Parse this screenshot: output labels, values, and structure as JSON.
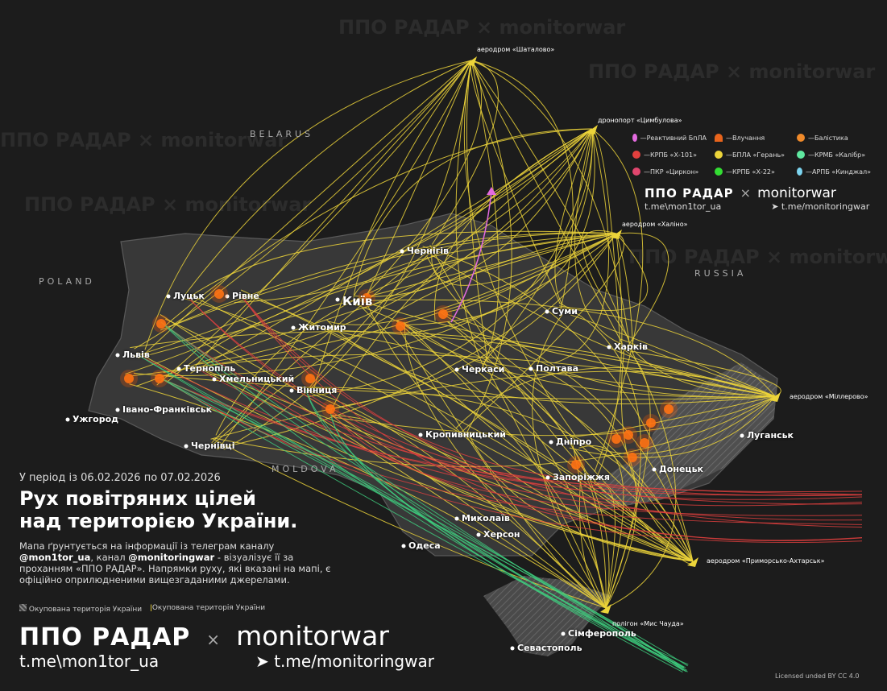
{
  "countries": [
    "BELARUS",
    "POLAND",
    "RUSSIA",
    "MOLDOVA"
  ],
  "cities": [
    "Луцьк",
    "Рівне",
    "Львів",
    "Тернопіль",
    "Хмельницький",
    "Вінниця",
    "Житомир",
    "Київ",
    "Чернігів",
    "Суми",
    "Харків",
    "Полтава",
    "Черкаси",
    "Кропивницький",
    "Дніпро",
    "Запоріжжя",
    "Донецьк",
    "Луганськ",
    "Миколаїв",
    "Херсон",
    "Одеса",
    "Сімферополь",
    "Севастополь",
    "Ужгород",
    "Івано-Франківськ",
    "Чернівці"
  ],
  "launch_sites": [
    "аеродром «Шаталово»",
    "дронопорт «Цимбулова»",
    "аеродром «Халіно»",
    "аеродром «Міллерово»",
    "аеродром «Приморсько-Ахтарськ»",
    "полігон «Мис Чауда»"
  ],
  "legend": {
    "items": [
      {
        "label": "Реактивний БпЛА",
        "color": "#e46be0"
      },
      {
        "label": "Влучання",
        "color": "#e8641c",
        "icon": "explosion-icon"
      },
      {
        "label": "Балістика",
        "color": "#f08a2a"
      },
      {
        "label": "КРПБ «Х-101»",
        "color": "#e2403e"
      },
      {
        "label": "БПЛА «Герань»",
        "color": "#ecd43a"
      },
      {
        "label": "КРМБ «Калібр»",
        "color": "#5fe8a0"
      },
      {
        "label": "ПКР «Циркон»",
        "color": "#e0466e"
      },
      {
        "label": "КРПБ «Х-22»",
        "color": "#33dd33"
      },
      {
        "label": "АРПБ «Кинджал»",
        "color": "#7cd4ef"
      }
    ]
  },
  "brand": {
    "left": "ППО РАДАР",
    "x": "×",
    "right": "monitorwar",
    "left_link": "t.me\\mon1tor_ua",
    "right_link": "t.me/monitoringwar"
  },
  "info": {
    "period": "У період із 06.02.2026 по 07.02.2026",
    "title_1": "Рух повітряних цілей",
    "title_2": "над територією України.",
    "desc_1": "Мапа ґрунтується на інформації із телеграм каналу",
    "handle_1": "@mon1tor_ua",
    "desc_2": ", канал ",
    "handle_2": "@monitoringwar",
    "desc_3": " - візуалізує її за проханням «ППО РАДАР». Напрямки руху, які вказані на мапі, є офіційно оприлюдненими вищезгаданими джерелами."
  },
  "occupied": {
    "hatched": "Окупована територія України",
    "pin": "Окупована територія України"
  },
  "license": "Licensed unded BY CC 4.0",
  "colors": {
    "background": "#1c1c1c",
    "ukraine": "#3a3a3a",
    "shahed": "#ecd43a",
    "kh101": "#e2403e",
    "kalibr": "#3fcf80"
  }
}
